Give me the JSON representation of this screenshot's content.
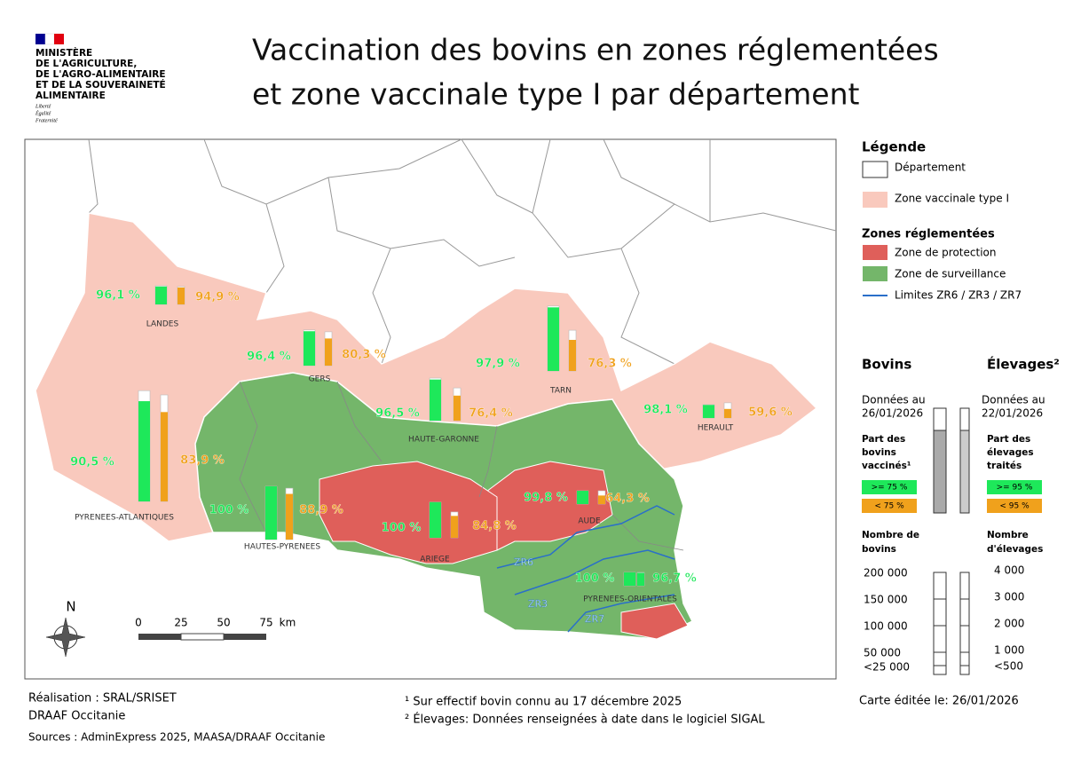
{
  "header": {
    "ministry": [
      "MINISTÈRE",
      "DE L'AGRICULTURE,",
      "DE L'AGRO-ALIMENTAIRE",
      "ET DE LA SOUVERAINETÉ",
      "ALIMENTAIRE"
    ],
    "motto": [
      "Liberté",
      "Égalité",
      "Fraternité"
    ],
    "title": [
      "Vaccination  des bovins en zones réglementées",
      "et zone vaccinale type I par département"
    ]
  },
  "departments": [
    {
      "name": "LANDES",
      "bovins": 35000,
      "bovins_vaccines": 96.1,
      "bovins_label": "96,1 %",
      "bovins_color": "#1ee85a",
      "elevages": 670,
      "elevages_traites": 94.9,
      "elevages_label": "94,9 %",
      "elevages_color": "#f0a11c"
    },
    {
      "name": "GERS",
      "bovins": 67000,
      "bovins_vaccines": 96.4,
      "bovins_label": "96,4 %",
      "bovins_color": "#1ee85a",
      "elevages": 1270,
      "elevages_traites": 80.3,
      "elevages_label": "80,3 %",
      "elevages_color": "#f0a11c"
    },
    {
      "name": "HAUTE-GARONNE",
      "bovins": 80000,
      "bovins_vaccines": 96.5,
      "bovins_label": "96,5 %",
      "bovins_color": "#1ee85a",
      "elevages": 1230,
      "elevages_traites": 76.4,
      "elevages_label": "76,4 %",
      "elevages_color": "#f0a11c"
    },
    {
      "name": "TARN",
      "bovins": 122000,
      "bovins_vaccines": 97.9,
      "bovins_label": "97,9 %",
      "bovins_color": "#1ee85a",
      "elevages": 1530,
      "elevages_traites": 76.3,
      "elevages_label": "76,3 %",
      "elevages_color": "#f0a11c"
    },
    {
      "name": "HERAULT",
      "bovins": 25000,
      "bovins_vaccines": 98.1,
      "bovins_label": "98,1 %",
      "bovins_color": "#1ee85a",
      "elevages": 570,
      "elevages_traites": 59.6,
      "elevages_label": "59,6 %",
      "elevages_color": "#f0a11c"
    },
    {
      "name": "PYRENEES-ATLANTIQUES",
      "bovins": 208000,
      "bovins_vaccines": 90.5,
      "bovins_label": "90,5 %",
      "bovins_color": "#1ee85a",
      "elevages": 4000,
      "elevages_traites": 83.9,
      "elevages_label": "83,9 %",
      "elevages_color": "#f0a11c"
    },
    {
      "name": "HAUTES-PYRENEES",
      "bovins": 100000,
      "bovins_vaccines": 100,
      "bovins_label": "100 %",
      "bovins_color": "#1ee85a",
      "elevages": 1930,
      "elevages_traites": 88.9,
      "elevages_label": "88,9 %",
      "elevages_color": "#f0a11c"
    },
    {
      "name": "ARIEGE",
      "bovins": 67000,
      "bovins_vaccines": 100,
      "bovins_label": "100 %",
      "bovins_color": "#1ee85a",
      "elevages": 970,
      "elevages_traites": 84.8,
      "elevages_label": "84,8 %",
      "elevages_color": "#f0a11c"
    },
    {
      "name": "AUDE",
      "bovins": 25000,
      "bovins_vaccines": 99.8,
      "bovins_label": "99,8 %",
      "bovins_color": "#1ee85a",
      "elevages": 500,
      "elevages_traites": 64.3,
      "elevages_label": "64,3 %",
      "elevages_color": "#f0a11c"
    },
    {
      "name": "PYRENEES-ORIENTALES",
      "bovins": 25000,
      "bovins_vaccines": 100,
      "bovins_label": "100 %",
      "bovins_color": "#1ee85a",
      "elevages": 500,
      "elevages_traites": 96.7,
      "elevages_label": "96,7 %",
      "elevages_color": "#1ee85a"
    }
  ],
  "zones": [
    "ZR6",
    "ZR3",
    "ZR7"
  ],
  "scale_bar": {
    "ticks": [
      "0",
      "25",
      "50",
      "75"
    ],
    "unit": "km"
  },
  "north": "N",
  "legend": {
    "title": "Légende",
    "departement": "Département",
    "zone_vaccinale": "Zone vaccinale type I",
    "zones_title": "Zones réglementées",
    "protection": "Zone de protection",
    "surveillance": "Zone de surveillance",
    "limites": "Limites ZR6 / ZR3 / ZR7",
    "bovins_title": "Bovins",
    "elevages_title": "Élevages²",
    "bovins_date": [
      "Données au",
      "26/01/2026"
    ],
    "elevages_date": [
      "Données au",
      "22/01/2026"
    ],
    "bovins_part": [
      "Part des",
      "bovins",
      "vaccinés¹"
    ],
    "elevages_part": [
      "Part des",
      "élevages",
      "traités"
    ],
    "bovins_high": ">= 75 %",
    "bovins_low": "< 75 %",
    "elevages_high": ">= 95 %",
    "elevages_low": "< 95 %",
    "bovins_count_title": [
      "Nombre de",
      "bovins"
    ],
    "elevages_count_title": [
      "Nombre",
      "d'élevages"
    ],
    "bovins_scale": [
      "200 000",
      "150 000",
      "100 000",
      "50 000",
      "<25 000"
    ],
    "elevages_scale": [
      "4 000",
      "3 000",
      "2 000",
      "1 000",
      "<500"
    ]
  },
  "footer": {
    "realisation": [
      "Réalisation : SRAL/SRISET",
      "DRAAF Occitanie"
    ],
    "sources": "Sources : AdminExpress 2025, MAASA/DRAAF Occitanie",
    "notes": [
      "¹ Sur effectif bovin connu au 17 décembre 2025",
      "² Élevages: Données renseignées à date dans le logiciel SIGAL"
    ],
    "edited": "Carte éditée le:  26/01/2026"
  }
}
